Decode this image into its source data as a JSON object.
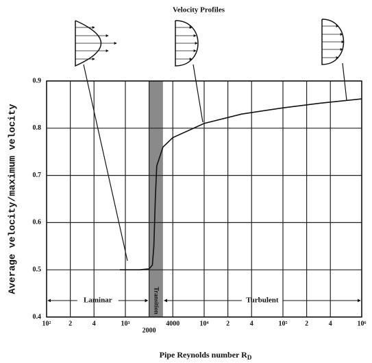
{
  "chart_data": {
    "type": "line",
    "title": "Velocity Profiles",
    "x_label": "Pipe Reynolds number R",
    "x_label_subscript": "D",
    "y_label": "Average velocity/maximum velocity",
    "log_x": true,
    "grid": true,
    "color": "#111111",
    "xlim": [
      100,
      1000000
    ],
    "ylim": [
      0.4,
      0.9
    ],
    "xticks": [
      {
        "value": 100,
        "label": "10²"
      },
      {
        "value": 200,
        "label": "2"
      },
      {
        "value": 400,
        "label": "4"
      },
      {
        "value": 1000,
        "label": "10³"
      },
      2000,
      4000,
      {
        "value": 10000,
        "label": "10⁴"
      },
      {
        "value": 20000,
        "label": "2"
      },
      {
        "value": 40000,
        "label": "4"
      },
      {
        "value": 100000,
        "label": "10⁵"
      },
      {
        "value": 200000,
        "label": "2"
      },
      {
        "value": 400000,
        "label": "4"
      },
      {
        "value": 1000000,
        "label": "10⁶"
      }
    ],
    "yticks": [
      0.4,
      0.5,
      0.6,
      0.7,
      0.8,
      0.9
    ],
    "x": [
      850,
      1000,
      1500,
      2000,
      2200,
      2300,
      2400,
      2500,
      3000,
      4000,
      10000,
      30000,
      100000,
      300000,
      1000000
    ],
    "values": [
      0.5,
      0.5,
      0.5,
      0.502,
      0.51,
      0.55,
      0.65,
      0.72,
      0.76,
      0.78,
      0.81,
      0.83,
      0.843,
      0.853,
      0.862
    ],
    "regions": [
      {
        "label": "Laminar",
        "range": [
          100,
          2000
        ]
      },
      {
        "label": "Transition",
        "range": [
          2000,
          3000
        ]
      },
      {
        "label": "Turbulent",
        "range": [
          3000,
          1000000
        ]
      }
    ]
  }
}
